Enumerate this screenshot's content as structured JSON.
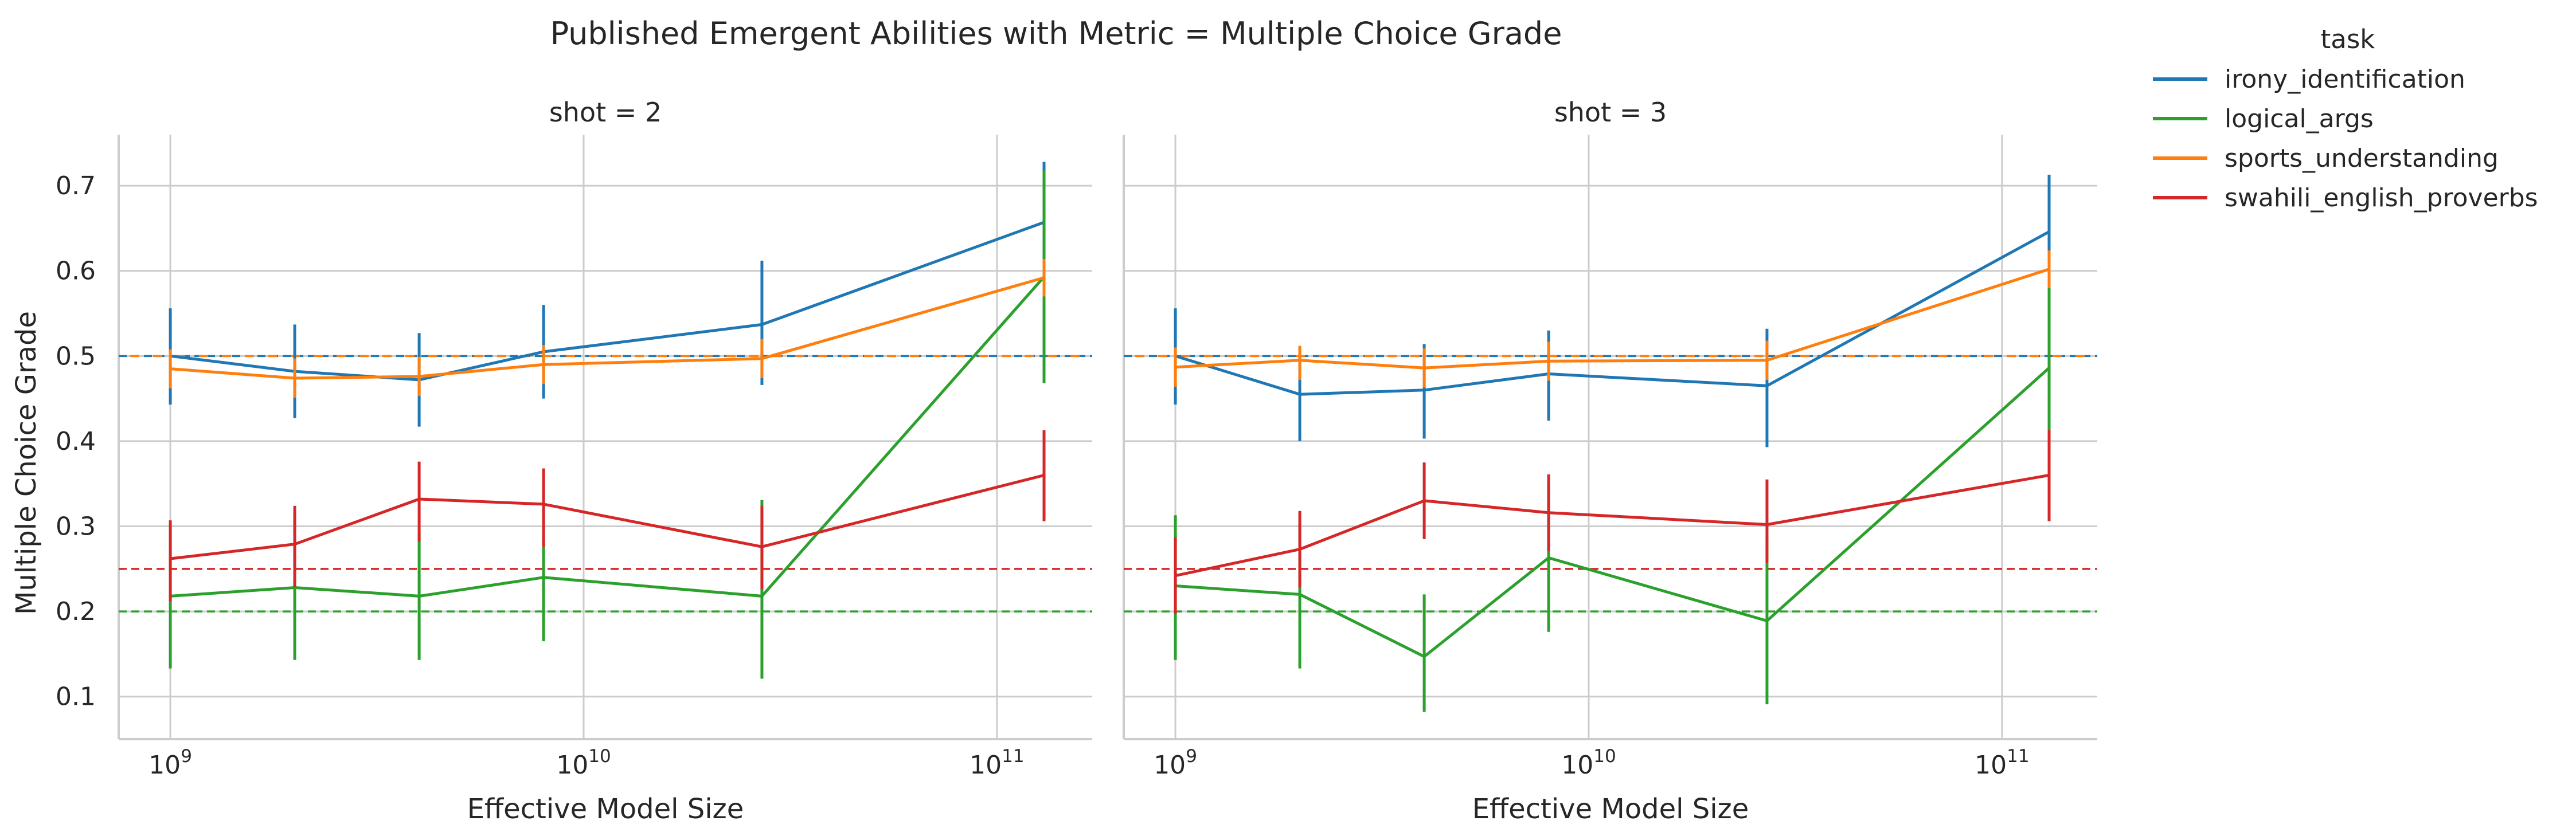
{
  "figure": {
    "title": "Published Emergent Abilities with Metric = Multiple Choice Grade"
  },
  "legend": {
    "title": "task",
    "placement": "outside-right-top"
  },
  "colors": {
    "irony_identification": "#1f77b4",
    "logical_args": "#2ca02c",
    "sports_understanding": "#ff7f0e",
    "swahili_english_proverbs": "#d62728",
    "grid": "#cccccc",
    "axis": "#cccccc",
    "text": "#262626"
  },
  "chart_data": {
    "type": "line",
    "x_scale": "log",
    "xlim": [
      750000000,
      170000000000
    ],
    "ylim": [
      0.05,
      0.76
    ],
    "xlabel": "Effective Model Size",
    "ylabel": "Multiple Choice Grade",
    "xticks": [
      1000000000,
      10000000000,
      100000000000
    ],
    "xtick_labels": [
      {
        "base": "10",
        "exp": "9"
      },
      {
        "base": "10",
        "exp": "10"
      },
      {
        "base": "10",
        "exp": "11"
      }
    ],
    "yticks": [
      0.1,
      0.2,
      0.3,
      0.4,
      0.5,
      0.6,
      0.7
    ],
    "ytick_labels": [
      "0.1",
      "0.2",
      "0.3",
      "0.4",
      "0.5",
      "0.6",
      "0.7"
    ],
    "grid": true,
    "x": [
      1000000000,
      2000000000,
      4000000000,
      8000000000,
      27000000000,
      130000000000
    ],
    "panels": [
      {
        "title": "shot = 2",
        "series": [
          {
            "name": "irony_identification",
            "values": [
              0.5,
              0.482,
              0.472,
              0.505,
              0.537,
              0.657
            ],
            "err_low": [
              0.443,
              0.427,
              0.417,
              0.45,
              0.466,
              0.59
            ],
            "err_high": [
              0.556,
              0.537,
              0.527,
              0.56,
              0.612,
              0.728
            ]
          },
          {
            "name": "logical_args",
            "values": [
              0.218,
              0.228,
              0.218,
              0.24,
              0.218,
              0.593
            ],
            "err_low": [
              0.133,
              0.143,
              0.143,
              0.165,
              0.121,
              0.468
            ],
            "err_high": [
              0.303,
              0.313,
              0.293,
              0.285,
              0.331,
              0.718
            ]
          },
          {
            "name": "sports_understanding",
            "values": [
              0.485,
              0.474,
              0.476,
              0.49,
              0.497,
              0.592
            ],
            "err_low": [
              0.462,
              0.451,
              0.453,
              0.467,
              0.474,
              0.57
            ],
            "err_high": [
              0.508,
              0.497,
              0.499,
              0.513,
              0.52,
              0.614
            ]
          },
          {
            "name": "swahili_english_proverbs",
            "values": [
              0.262,
              0.279,
              0.332,
              0.326,
              0.276,
              0.36
            ],
            "err_low": [
              0.212,
              0.229,
              0.282,
              0.276,
              0.226,
              0.306
            ],
            "err_high": [
              0.307,
              0.324,
              0.376,
              0.368,
              0.324,
              0.413
            ]
          }
        ]
      },
      {
        "title": "shot = 3",
        "series": [
          {
            "name": "irony_identification",
            "values": [
              0.5,
              0.455,
              0.46,
              0.479,
              0.465,
              0.646
            ],
            "err_low": [
              0.443,
              0.4,
              0.403,
              0.424,
              0.393,
              0.58
            ],
            "err_high": [
              0.556,
              0.51,
              0.514,
              0.53,
              0.532,
              0.713
            ]
          },
          {
            "name": "logical_args",
            "values": [
              0.23,
              0.22,
              0.147,
              0.263,
              0.189,
              0.486
            ],
            "err_low": [
              0.143,
              0.133,
              0.082,
              0.176,
              0.091,
              0.39
            ],
            "err_high": [
              0.313,
              0.303,
              0.22,
              0.35,
              0.287,
              0.582
            ]
          },
          {
            "name": "sports_understanding",
            "values": [
              0.487,
              0.495,
              0.486,
              0.494,
              0.495,
              0.602
            ],
            "err_low": [
              0.464,
              0.472,
              0.463,
              0.471,
              0.472,
              0.58
            ],
            "err_high": [
              0.51,
              0.512,
              0.509,
              0.517,
              0.518,
              0.624
            ]
          },
          {
            "name": "swahili_english_proverbs",
            "values": [
              0.242,
              0.273,
              0.33,
              0.316,
              0.302,
              0.36
            ],
            "err_low": [
              0.197,
              0.228,
              0.285,
              0.271,
              0.257,
              0.306
            ],
            "err_high": [
              0.287,
              0.318,
              0.375,
              0.361,
              0.355,
              0.413
            ]
          }
        ]
      }
    ],
    "reference_lines": [
      {
        "series": "irony_identification",
        "y": 0.5,
        "style": "dashed"
      },
      {
        "series": "sports_understanding",
        "y": 0.5,
        "style": "dashed"
      },
      {
        "series": "swahili_english_proverbs",
        "y": 0.25,
        "style": "dashed"
      },
      {
        "series": "logical_args",
        "y": 0.2,
        "style": "dashed"
      }
    ],
    "legend_entries": [
      "irony_identification",
      "logical_args",
      "sports_understanding",
      "swahili_english_proverbs"
    ]
  }
}
